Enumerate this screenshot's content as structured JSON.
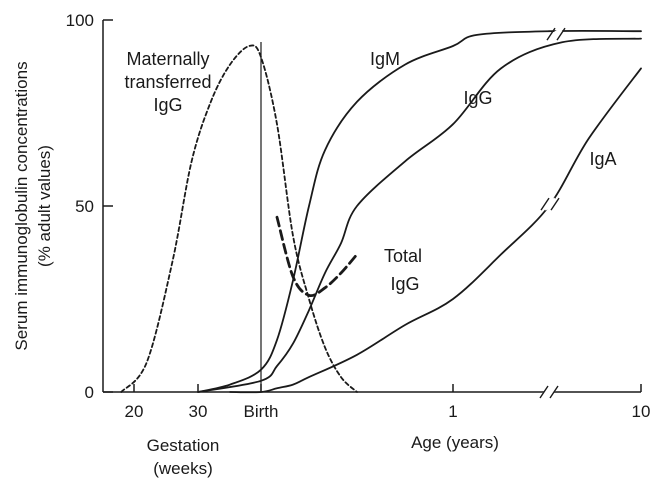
{
  "chart_data": {
    "type": "line",
    "title": "",
    "ylabel_line1": "Serum immunoglobulin concentrations",
    "ylabel_line2": "(% adult values)",
    "ylim": [
      0,
      100
    ],
    "y_ticks": [
      {
        "value": 0,
        "label": "0"
      },
      {
        "value": 50,
        "label": "50"
      },
      {
        "value": 100,
        "label": "100"
      }
    ],
    "x_scale_note": "piecewise: gestation weeks, then postnatal months to 1 year, then years with axis break",
    "x_ticks": [
      {
        "key": "w20",
        "label": "20"
      },
      {
        "key": "w30",
        "label": "30"
      },
      {
        "key": "birth",
        "label": "Birth"
      },
      {
        "key": "y1",
        "label": "1"
      },
      {
        "key": "y10",
        "label": "10"
      }
    ],
    "x_group_labels": {
      "gestation_line1": "Gestation",
      "gestation_line2": "(weeks)",
      "age": "Age (years)"
    },
    "birth_marker": true,
    "axis_break": true,
    "series": [
      {
        "key": "maternal",
        "name_line1": "Maternally",
        "name_line2": "transferred",
        "name_line3": "IgG",
        "style": "dotted",
        "points": [
          [
            "w18",
            0
          ],
          [
            "w22",
            8
          ],
          [
            "w26",
            35
          ],
          [
            "w29",
            62
          ],
          [
            "w32",
            78
          ],
          [
            "w35",
            88
          ],
          [
            "w38",
            93
          ],
          [
            "birth",
            90
          ],
          [
            "m1",
            72
          ],
          [
            "m2",
            42
          ],
          [
            "m3",
            25
          ],
          [
            "m4",
            12
          ],
          [
            "m5",
            4
          ],
          [
            "m6",
            0
          ]
        ]
      },
      {
        "key": "igm",
        "name": "IgM",
        "style": "solid",
        "points": [
          [
            "w30",
            0
          ],
          [
            "w35",
            2
          ],
          [
            "birth",
            6
          ],
          [
            "m1",
            14
          ],
          [
            "m2",
            30
          ],
          [
            "m3",
            50
          ],
          [
            "m4",
            65
          ],
          [
            "m6",
            78
          ],
          [
            "m9",
            88
          ],
          [
            "y1",
            93
          ],
          [
            "y1.5",
            96
          ],
          [
            "y3",
            97
          ],
          [
            "y10",
            97
          ]
        ]
      },
      {
        "key": "igg",
        "name": "IgG",
        "style": "solid",
        "points": [
          [
            "w30",
            0
          ],
          [
            "birth",
            3
          ],
          [
            "m1",
            7
          ],
          [
            "m2",
            13
          ],
          [
            "m3",
            22
          ],
          [
            "m4",
            32
          ],
          [
            "m5",
            40
          ],
          [
            "m6",
            50
          ],
          [
            "m9",
            62
          ],
          [
            "y1",
            72
          ],
          [
            "y2",
            87
          ],
          [
            "y4",
            94
          ],
          [
            "y10",
            95
          ]
        ]
      },
      {
        "key": "total_igg",
        "name_line1": "Total",
        "name_line2": "IgG",
        "style": "dashed",
        "points": [
          [
            "m1",
            47
          ],
          [
            "m2",
            31
          ],
          [
            "m3",
            26
          ],
          [
            "m4",
            28
          ],
          [
            "m5",
            32
          ],
          [
            "m6",
            37
          ]
        ]
      },
      {
        "key": "iga",
        "name": "IgA",
        "style": "solid",
        "points": [
          [
            "w35",
            0
          ],
          [
            "birth",
            0
          ],
          [
            "m1",
            1
          ],
          [
            "m2",
            2
          ],
          [
            "m3",
            4
          ],
          [
            "m6",
            10
          ],
          [
            "m9",
            18
          ],
          [
            "y1",
            25
          ],
          [
            "y2",
            37
          ],
          [
            "y3",
            50
          ],
          [
            "y6",
            68
          ],
          [
            "y10",
            87
          ]
        ]
      }
    ]
  }
}
